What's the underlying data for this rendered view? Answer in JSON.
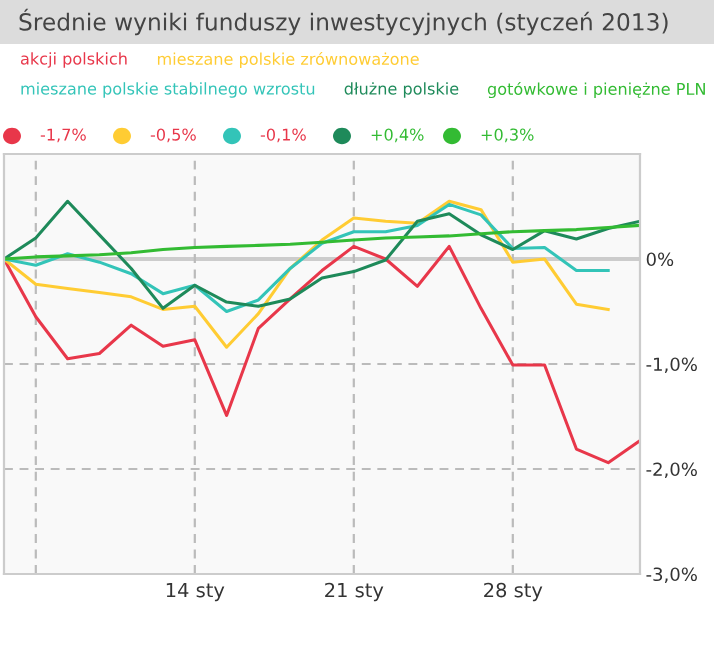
{
  "chart_data": {
    "type": "line",
    "title": "Średnie wyniki funduszy inwestycyjnych (styczeń 2013)",
    "categories": [
      null,
      null,
      null,
      null,
      null,
      null,
      "14 sty",
      null,
      null,
      null,
      null,
      "21 sty",
      null,
      null,
      null,
      null,
      "28 sty",
      null,
      null,
      null,
      null
    ],
    "series": [
      {
        "name": "akcji polskich",
        "color": "#e8374a",
        "values": [
          0,
          -0.55,
          -0.95,
          -0.9,
          -0.63,
          -0.83,
          -0.77,
          -1.49,
          -0.66,
          -0.38,
          -0.11,
          0.12,
          0.0,
          -0.26,
          0.12,
          -0.47,
          -1.01,
          -1.01,
          -1.81,
          -1.94,
          -1.73
        ]
      },
      {
        "name": "mieszane polskie zrównoważone",
        "color": "#ffcc33",
        "values": [
          0,
          -0.24,
          -0.28,
          -0.32,
          -0.36,
          -0.48,
          -0.45,
          -0.84,
          -0.52,
          -0.09,
          0.18,
          0.39,
          0.36,
          0.34,
          0.55,
          0.47,
          -0.03,
          0.0,
          -0.43,
          -0.48,
          null
        ]
      },
      {
        "name": "mieszane polskie stabilnego wzrostu",
        "color": "#33c4b8",
        "values": [
          0,
          -0.06,
          0.05,
          -0.03,
          -0.14,
          -0.33,
          -0.25,
          -0.5,
          -0.39,
          -0.09,
          0.15,
          0.26,
          0.26,
          0.32,
          0.52,
          0.42,
          0.1,
          0.11,
          -0.11,
          -0.11,
          null
        ]
      },
      {
        "name": "dłużne polskie",
        "color": "#1e8a5a",
        "values": [
          0,
          0.2,
          0.55,
          0.23,
          -0.09,
          -0.47,
          -0.25,
          -0.41,
          -0.45,
          -0.38,
          -0.18,
          -0.12,
          -0.01,
          0.36,
          0.43,
          0.23,
          0.09,
          0.27,
          0.19,
          0.29,
          0.36
        ]
      },
      {
        "name": "gotówkowe i pieniężne PLN",
        "color": "#33bb33",
        "values": [
          0,
          0.02,
          0.03,
          0.04,
          0.06,
          0.09,
          0.11,
          0.12,
          0.13,
          0.14,
          0.16,
          0.18,
          0.2,
          0.21,
          0.22,
          0.24,
          0.26,
          0.27,
          0.28,
          0.3,
          0.32
        ]
      }
    ],
    "annotations": [
      "-1,7%",
      "-0,5%",
      "-0,1%",
      "+0,4%",
      "+0,3%"
    ],
    "ylim": [
      -3,
      1
    ],
    "yticks": [
      {
        "value": 1,
        "label": null
      },
      {
        "value": 0,
        "label": "0%"
      },
      {
        "value": -1,
        "label": "-1,0%"
      },
      {
        "value": -2,
        "label": "-2,0%"
      },
      {
        "value": -3,
        "label": "-3,0%"
      }
    ],
    "grid": true,
    "legend": "top",
    "marker": "none",
    "line_style": "solid"
  }
}
